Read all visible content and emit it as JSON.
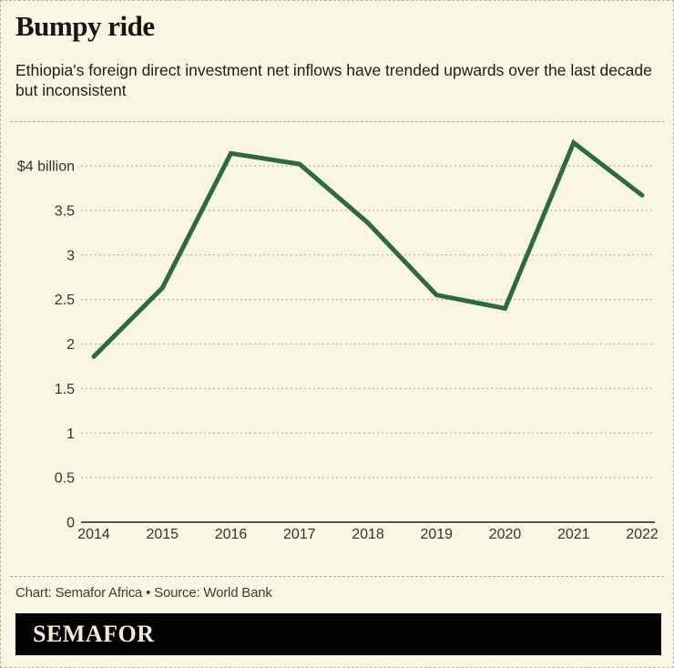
{
  "page": {
    "background_color": "#f9f6e3",
    "border_color": "#b6b6ab"
  },
  "header": {
    "title": "Bumpy ride",
    "subtitle": "Ethiopia's foreign direct investment net inflows have trended upwards over the last decade but inconsistent"
  },
  "chart_data": {
    "type": "line",
    "title": "Bumpy ride",
    "subtitle": "Ethiopia's foreign direct investment net inflows have trended upwards over the last decade but inconsistent",
    "x": [
      "2014",
      "2015",
      "2016",
      "2017",
      "2018",
      "2019",
      "2020",
      "2021",
      "2022"
    ],
    "series": [
      {
        "name": "Ethiopia FDI net inflows ($ billion)",
        "values": [
          1.86,
          2.63,
          4.14,
          4.02,
          3.36,
          2.55,
          2.4,
          4.26,
          3.67
        ]
      }
    ],
    "xlabel": "",
    "ylabel": "$ billion",
    "ylim": [
      0,
      4.45
    ],
    "yticks": [
      {
        "value": 4,
        "label": "$4 billion"
      },
      {
        "value": 3.5,
        "label": "3.5"
      },
      {
        "value": 3,
        "label": "3"
      },
      {
        "value": 2.5,
        "label": "2.5"
      },
      {
        "value": 2,
        "label": "2"
      },
      {
        "value": 1.5,
        "label": "1.5"
      },
      {
        "value": 1,
        "label": "1"
      },
      {
        "value": 0.5,
        "label": "0.5"
      },
      {
        "value": 0,
        "label": "0"
      }
    ],
    "grid": "horizontal-dashed",
    "legend_position": "none",
    "line_color": "#2d6a40",
    "gridline_color": "#b6b6ac",
    "axis_color": "#3c3c38"
  },
  "footer": {
    "credit": "Chart: Semafor Africa • Source: World Bank",
    "logo_text": "SEMAFOR"
  }
}
